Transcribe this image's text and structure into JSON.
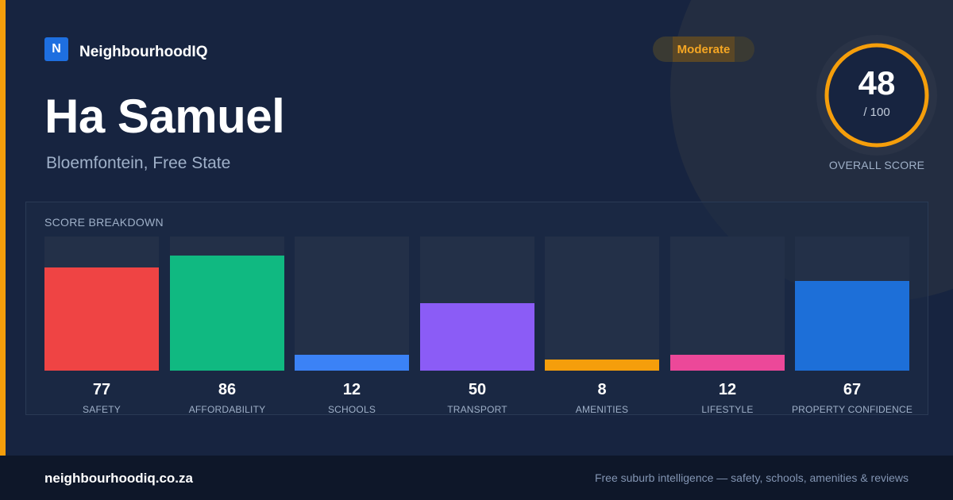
{
  "brand": {
    "logo_letter": "N",
    "name": "NeighbourhoodIQ"
  },
  "suburb": {
    "name": "Ha Samuel",
    "location": "Bloemfontein, Free State"
  },
  "badge": {
    "label": "Moderate"
  },
  "overall": {
    "score": 48,
    "score_text": "48",
    "max_text": "/ 100",
    "caption": "OVERALL SCORE"
  },
  "breakdown": {
    "title": "SCORE BREAKDOWN",
    "items": [
      {
        "label": "SAFETY",
        "value": 77,
        "value_text": "77",
        "color": "#ef4444"
      },
      {
        "label": "AFFORDABILITY",
        "value": 86,
        "value_text": "86",
        "color": "#10b981"
      },
      {
        "label": "SCHOOLS",
        "value": 12,
        "value_text": "12",
        "color": "#3b82f6"
      },
      {
        "label": "TRANSPORT",
        "value": 50,
        "value_text": "50",
        "color": "#8b5cf6"
      },
      {
        "label": "AMENITIES",
        "value": 8,
        "value_text": "8",
        "color": "#f59e0b"
      },
      {
        "label": "LIFESTYLE",
        "value": 12,
        "value_text": "12",
        "color": "#ec4899"
      },
      {
        "label": "PROPERTY CONFIDENCE",
        "value": 67,
        "value_text": "67",
        "color": "#1d6fd8"
      }
    ]
  },
  "footer": {
    "url": "neighbourhoodiq.co.za",
    "tagline": "Free suburb intelligence — safety, schools, amenities & reviews"
  },
  "colors": {
    "accent": "#f59e0b",
    "brand_blue": "#1e6fe0",
    "background": "#172440",
    "footer_bg": "#0e1729"
  }
}
